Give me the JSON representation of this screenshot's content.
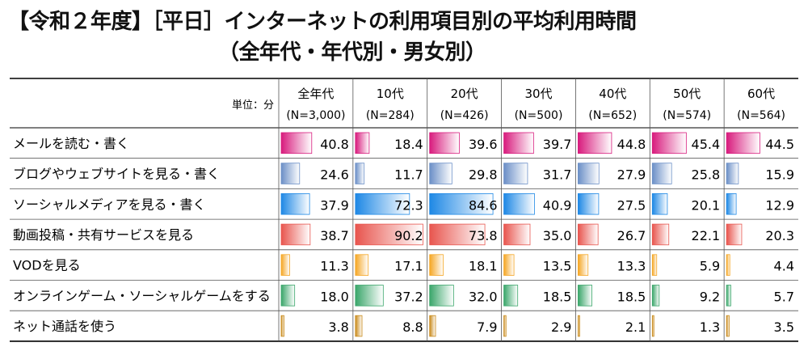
{
  "title": "【令和２年度】［平日］インターネットの利用項目別の平均利用時間",
  "subtitle": "（全年代・年代別・男女別）",
  "unit_label": "単位：分",
  "chart_data": {
    "type": "bar",
    "title": "【令和２年度】［平日］インターネットの利用項目別の平均利用時間",
    "subtitle": "（全年代・年代別・男女別）",
    "unit": "単位：分",
    "groups": [
      {
        "name": "全年代",
        "n": "(N=3,000)"
      },
      {
        "name": "10代",
        "n": "(N=284)"
      },
      {
        "name": "20代",
        "n": "(N=426)"
      },
      {
        "name": "30代",
        "n": "(N=500)"
      },
      {
        "name": "40代",
        "n": "(N=652)"
      },
      {
        "name": "50代",
        "n": "(N=574)"
      },
      {
        "name": "60代",
        "n": "(N=564)"
      }
    ],
    "categories": [
      "メールを読む・書く",
      "ブログやウェブサイトを見る・書く",
      "ソーシャルメディアを見る・書く",
      "動画投稿・共有サービスを見る",
      "VODを見る",
      "オンラインゲーム・ソーシャルゲームをする",
      "ネット通話を使う"
    ],
    "values": [
      [
        40.8,
        18.4,
        39.6,
        39.7,
        44.8,
        45.4,
        44.5
      ],
      [
        24.6,
        11.7,
        29.8,
        31.7,
        27.9,
        25.8,
        15.9
      ],
      [
        37.9,
        72.3,
        84.6,
        40.9,
        27.5,
        20.1,
        12.9
      ],
      [
        38.7,
        90.2,
        73.8,
        35.0,
        26.7,
        22.1,
        20.3
      ],
      [
        11.3,
        17.1,
        18.1,
        13.5,
        13.3,
        5.9,
        4.4
      ],
      [
        18.0,
        37.2,
        32.0,
        18.5,
        18.5,
        9.2,
        5.7
      ],
      [
        3.8,
        8.8,
        7.9,
        2.9,
        2.1,
        1.3,
        3.5
      ]
    ],
    "row_colors": [
      "#d81b7d",
      "#6b8fc7",
      "#1e88e5",
      "#e8554e",
      "#f5a623",
      "#3aa66a",
      "#c98a1a"
    ],
    "xlim": [
      0,
      95
    ],
    "grid": false,
    "legend": "none"
  }
}
